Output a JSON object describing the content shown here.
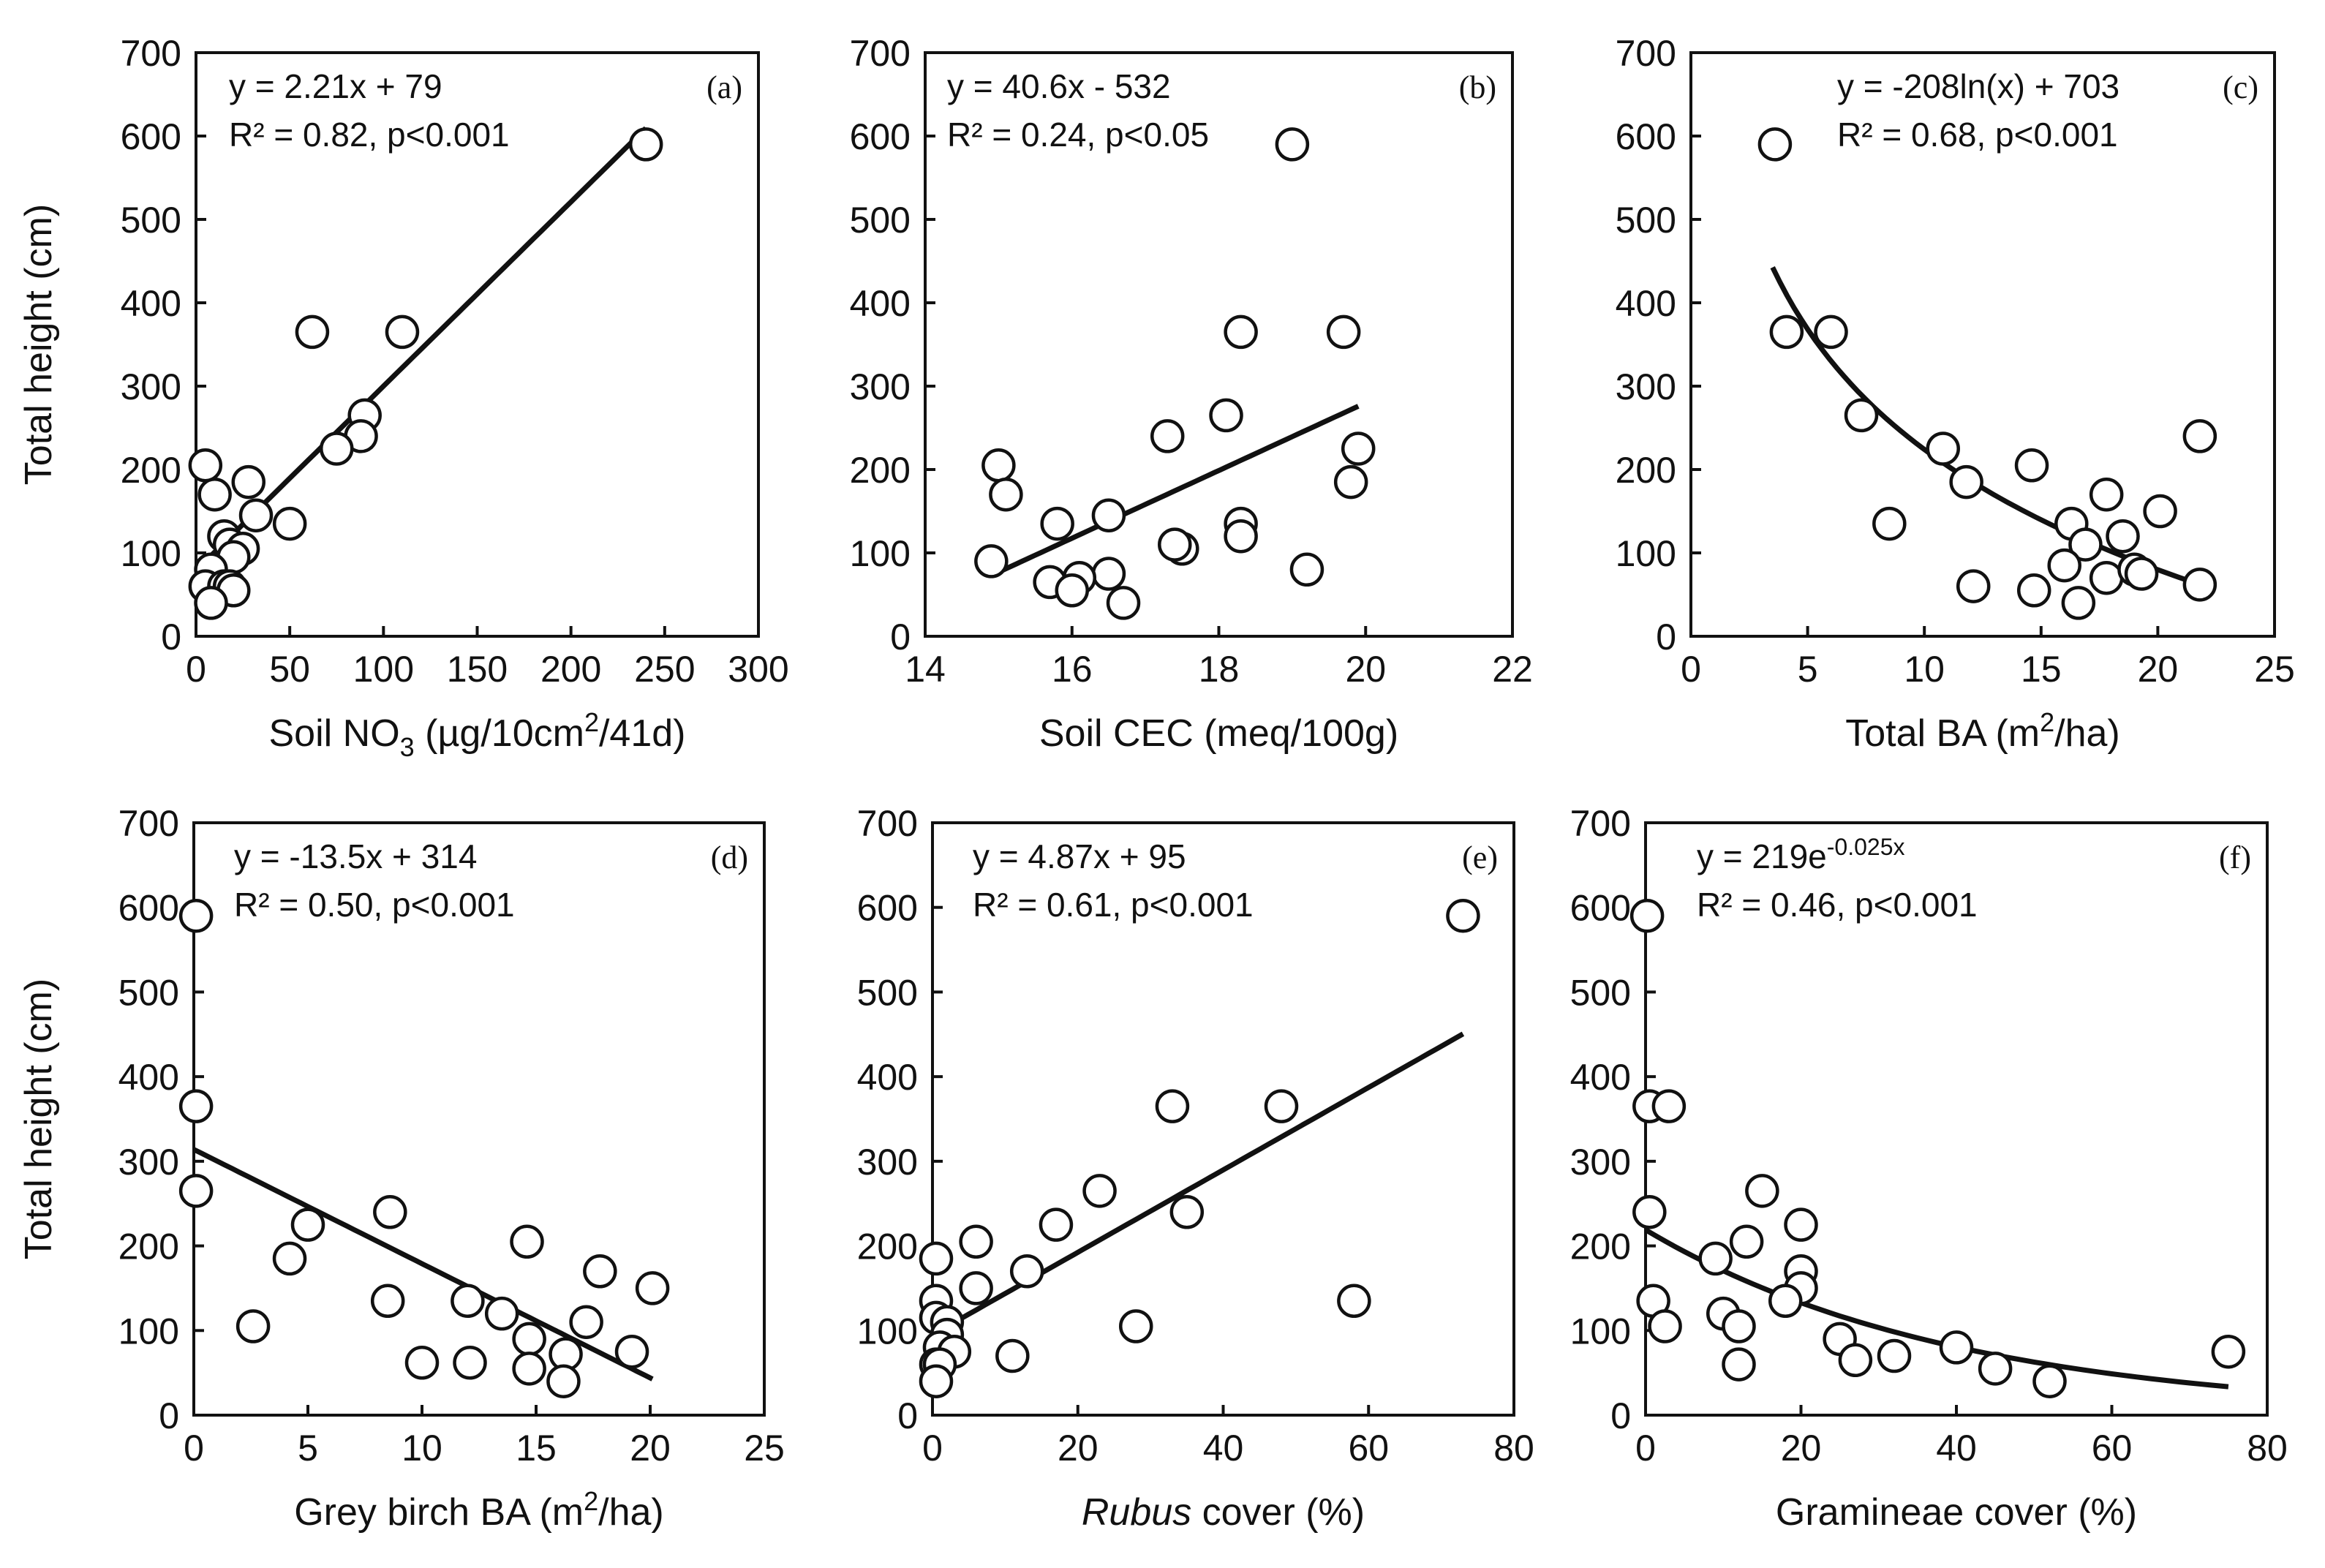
{
  "chart_data": [
    {
      "id": "a",
      "type": "scatter",
      "panel_label": "(a)",
      "equation": "y = 2.21x + 79",
      "r2": "R² = 0.82, p<0.001",
      "xlabel_parts": [
        "Soil NO",
        "3",
        " (µg/10cm",
        "2",
        "/41d)"
      ],
      "ylabel": "Total height (cm)",
      "xlim": [
        0,
        300
      ],
      "xticks": [
        0,
        50,
        100,
        150,
        200,
        250,
        300
      ],
      "ylim": [
        0,
        700
      ],
      "yticks": [
        0,
        100,
        200,
        300,
        400,
        500,
        600,
        700
      ],
      "fit": {
        "kind": "linear",
        "a": 2.21,
        "b": 79,
        "x_range": [
          0,
          240
        ]
      },
      "points": [
        [
          240,
          590
        ],
        [
          62,
          365
        ],
        [
          110,
          365
        ],
        [
          90,
          265
        ],
        [
          88,
          240
        ],
        [
          75,
          225
        ],
        [
          5,
          205
        ],
        [
          10,
          170
        ],
        [
          28,
          185
        ],
        [
          32,
          145
        ],
        [
          50,
          135
        ],
        [
          15,
          120
        ],
        [
          18,
          110
        ],
        [
          25,
          105
        ],
        [
          20,
          95
        ],
        [
          8,
          80
        ],
        [
          5,
          60
        ],
        [
          15,
          60
        ],
        [
          18,
          60
        ],
        [
          20,
          55
        ],
        [
          8,
          40
        ]
      ]
    },
    {
      "id": "b",
      "type": "scatter",
      "panel_label": "(b)",
      "equation": "y = 40.6x - 532",
      "r2": "R² = 0.24, p<0.05",
      "xlabel_parts": [
        "Soil CEC (meq/100g)"
      ],
      "ylabel": "",
      "xlim": [
        14,
        22
      ],
      "xticks": [
        14,
        16,
        18,
        20,
        22
      ],
      "ylim": [
        0,
        700
      ],
      "yticks": [
        0,
        100,
        200,
        300,
        400,
        500,
        600,
        700
      ],
      "fit": {
        "kind": "linear",
        "a": 40.6,
        "b": -532,
        "x_range": [
          15,
          19.9
        ]
      },
      "points": [
        [
          19.0,
          590
        ],
        [
          18.3,
          365
        ],
        [
          19.7,
          365
        ],
        [
          18.1,
          265
        ],
        [
          17.3,
          240
        ],
        [
          19.9,
          225
        ],
        [
          15.0,
          205
        ],
        [
          15.1,
          170
        ],
        [
          19.8,
          185
        ],
        [
          16.5,
          145
        ],
        [
          15.8,
          135
        ],
        [
          18.3,
          135
        ],
        [
          18.3,
          120
        ],
        [
          17.5,
          105
        ],
        [
          17.4,
          110
        ],
        [
          14.9,
          90
        ],
        [
          19.2,
          80
        ],
        [
          16.5,
          75
        ],
        [
          16.1,
          70
        ],
        [
          15.7,
          65
        ],
        [
          16.0,
          55
        ],
        [
          16.7,
          40
        ]
      ]
    },
    {
      "id": "c",
      "type": "scatter",
      "panel_label": "(c)",
      "equation": "y = -208ln(x) + 703",
      "r2": "R² = 0.68, p<0.001",
      "xlabel_parts": [
        "Total BA (m",
        "2",
        "/ha)"
      ],
      "ylabel": "",
      "xlim": [
        0,
        25
      ],
      "xticks": [
        0,
        5,
        10,
        15,
        20,
        25
      ],
      "ylim": [
        0,
        700
      ],
      "yticks": [
        0,
        100,
        200,
        300,
        400,
        500,
        600,
        700
      ],
      "fit": {
        "kind": "log",
        "a": -208,
        "b": 703,
        "x_range": [
          3.5,
          21.8
        ]
      },
      "points": [
        [
          3.6,
          590
        ],
        [
          4.1,
          365
        ],
        [
          6.0,
          365
        ],
        [
          7.3,
          265
        ],
        [
          10.8,
          225
        ],
        [
          11.8,
          185
        ],
        [
          8.5,
          135
        ],
        [
          14.6,
          205
        ],
        [
          17.8,
          170
        ],
        [
          20.1,
          150
        ],
        [
          21.8,
          240
        ],
        [
          16.3,
          135
        ],
        [
          16.9,
          110
        ],
        [
          18.5,
          120
        ],
        [
          16.0,
          85
        ],
        [
          17.8,
          70
        ],
        [
          19.0,
          80
        ],
        [
          19.3,
          75
        ],
        [
          12.1,
          60
        ],
        [
          14.7,
          55
        ],
        [
          16.6,
          40
        ],
        [
          21.8,
          62
        ]
      ]
    },
    {
      "id": "d",
      "type": "scatter",
      "panel_label": "(d)",
      "equation": "y = -13.5x + 314",
      "r2": "R² = 0.50, p<0.001",
      "xlabel_parts": [
        "Grey birch BA (m",
        "2",
        "/ha)"
      ],
      "ylabel": "Total height (cm)",
      "xlim": [
        0,
        25
      ],
      "xticks": [
        0,
        5,
        10,
        15,
        20,
        25
      ],
      "ylim": [
        0,
        700
      ],
      "yticks": [
        0,
        100,
        200,
        300,
        400,
        500,
        600,
        700
      ],
      "fit": {
        "kind": "linear",
        "a": -13.5,
        "b": 314,
        "x_range": [
          0,
          20.1
        ]
      },
      "points": [
        [
          0.1,
          590
        ],
        [
          0.1,
          365
        ],
        [
          0.1,
          265
        ],
        [
          8.6,
          240
        ],
        [
          5.0,
          225
        ],
        [
          4.2,
          185
        ],
        [
          14.6,
          205
        ],
        [
          17.8,
          170
        ],
        [
          20.1,
          150
        ],
        [
          2.6,
          105
        ],
        [
          8.5,
          135
        ],
        [
          12.0,
          135
        ],
        [
          13.5,
          120
        ],
        [
          17.2,
          110
        ],
        [
          14.7,
          90
        ],
        [
          19.2,
          75
        ],
        [
          16.3,
          72
        ],
        [
          10.0,
          62
        ],
        [
          12.1,
          62
        ],
        [
          14.7,
          55
        ],
        [
          16.2,
          40
        ]
      ]
    },
    {
      "id": "e",
      "type": "scatter",
      "panel_label": "(e)",
      "equation": "y = 4.87x + 95",
      "r2": "R² = 0.61, p<0.001",
      "xlabel_parts": [
        "Rubus",
        " cover (%)"
      ],
      "ylabel": "",
      "xlim": [
        0,
        80
      ],
      "xticks": [
        0,
        20,
        40,
        60,
        80
      ],
      "ylim": [
        0,
        700
      ],
      "yticks": [
        0,
        100,
        200,
        300,
        400,
        500,
        600,
        700
      ],
      "fit": {
        "kind": "linear",
        "a": 4.87,
        "b": 95,
        "x_range": [
          0,
          73
        ]
      },
      "points": [
        [
          73,
          590
        ],
        [
          33,
          365
        ],
        [
          48,
          365
        ],
        [
          23,
          265
        ],
        [
          35,
          240
        ],
        [
          17,
          225
        ],
        [
          6,
          205
        ],
        [
          0.5,
          185
        ],
        [
          13,
          170
        ],
        [
          6,
          150
        ],
        [
          0.5,
          135
        ],
        [
          58,
          135
        ],
        [
          0.5,
          115
        ],
        [
          2,
          110
        ],
        [
          28,
          105
        ],
        [
          2,
          95
        ],
        [
          1,
          80
        ],
        [
          3,
          75
        ],
        [
          11,
          70
        ],
        [
          0.5,
          60
        ],
        [
          1,
          60
        ],
        [
          0.5,
          40
        ]
      ]
    },
    {
      "id": "f",
      "type": "scatter",
      "panel_label": "(f)",
      "equation_parts": [
        "y = 219e",
        "-0.025x"
      ],
      "r2": "R² = 0.46, p<0.001",
      "xlabel_parts": [
        "Gramineae cover (%)"
      ],
      "ylabel": "",
      "xlim": [
        0,
        80
      ],
      "xticks": [
        0,
        20,
        40,
        60,
        80
      ],
      "ylim": [
        0,
        700
      ],
      "yticks": [
        0,
        100,
        200,
        300,
        400,
        500,
        600,
        700
      ],
      "fit": {
        "kind": "exp",
        "a": 219,
        "b": -0.025,
        "x_range": [
          0,
          75
        ]
      },
      "points": [
        [
          0.2,
          590
        ],
        [
          0.5,
          365
        ],
        [
          3,
          365
        ],
        [
          0.5,
          240
        ],
        [
          15,
          265
        ],
        [
          20,
          225
        ],
        [
          9,
          185
        ],
        [
          13,
          205
        ],
        [
          20,
          170
        ],
        [
          20,
          150
        ],
        [
          18,
          135
        ],
        [
          1,
          135
        ],
        [
          2.5,
          105
        ],
        [
          10,
          120
        ],
        [
          12,
          105
        ],
        [
          25,
          90
        ],
        [
          32,
          70
        ],
        [
          40,
          80
        ],
        [
          27,
          65
        ],
        [
          45,
          55
        ],
        [
          12,
          60
        ],
        [
          52,
          40
        ],
        [
          75,
          75
        ]
      ]
    }
  ]
}
